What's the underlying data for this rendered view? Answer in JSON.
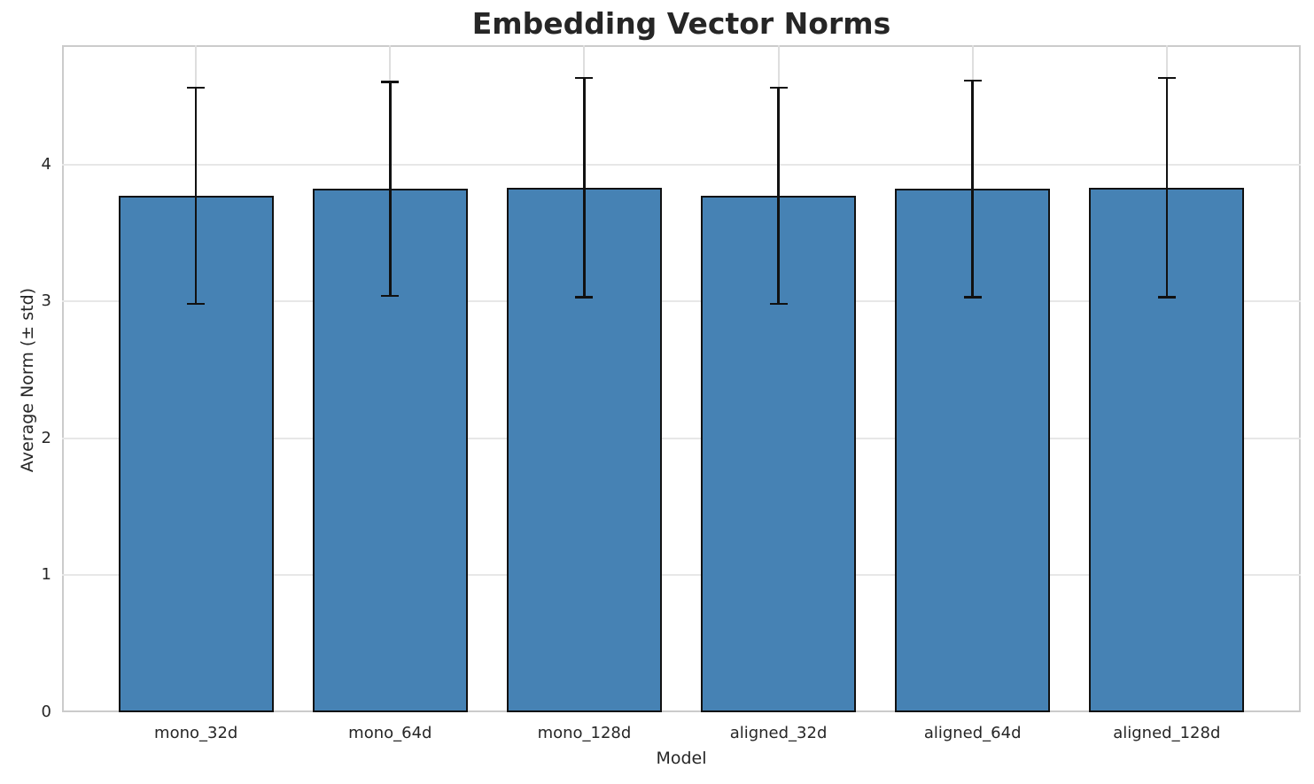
{
  "chart_data": {
    "type": "bar",
    "title": "Embedding Vector Norms",
    "xlabel": "Model",
    "ylabel": "Average Norm (± std)",
    "categories": [
      "mono_32d",
      "mono_64d",
      "mono_128d",
      "aligned_32d",
      "aligned_64d",
      "aligned_128d"
    ],
    "series": [
      {
        "name": "Average Norm",
        "values": [
          3.77,
          3.82,
          3.83,
          3.77,
          3.82,
          3.83
        ],
        "errors": [
          0.79,
          0.78,
          0.8,
          0.79,
          0.79,
          0.8
        ]
      }
    ],
    "yticks": [
      0,
      1,
      2,
      3,
      4
    ],
    "ylim": [
      0,
      4.87
    ],
    "xlim": [
      -0.69,
      5.69
    ],
    "bar_width_data_units": 0.8,
    "grid": true,
    "legend_position": "none",
    "colors": {
      "bar_fill": "#4682B4",
      "bar_edge": "#111111",
      "error_bar": "#111111",
      "grid_line_h": "#e7e7e7",
      "grid_line_v": "#dedede",
      "spine": "#cbcbcb",
      "text": "#262626",
      "background": "#ffffff"
    }
  }
}
